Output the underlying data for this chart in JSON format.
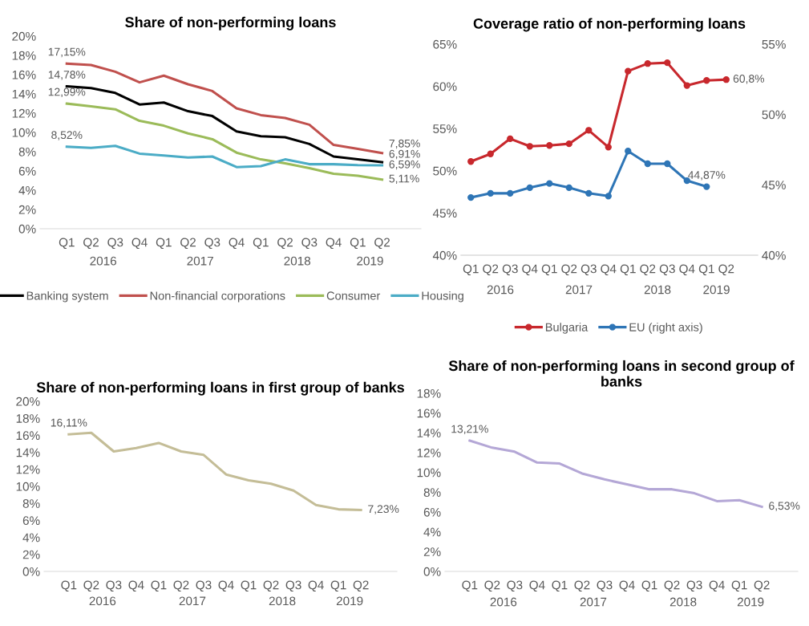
{
  "chart_data": [
    {
      "type": "line",
      "title": "Share of non-performing loans",
      "categories": [
        "Q1",
        "Q2",
        "Q3",
        "Q4",
        "Q1",
        "Q2",
        "Q3",
        "Q4",
        "Q1",
        "Q2",
        "Q3",
        "Q4",
        "Q1",
        "Q2"
      ],
      "annotations": [
        "2016",
        "2017",
        "2018",
        "2019"
      ],
      "ylim": [
        0,
        20
      ],
      "yticks": [
        {
          "value": 0,
          "label": "0%"
        },
        {
          "value": 2,
          "label": "2%"
        },
        {
          "value": 4,
          "label": "4%"
        },
        {
          "value": 6,
          "label": "6%"
        },
        {
          "value": 8,
          "label": "8%"
        },
        {
          "value": 10,
          "label": "10%"
        },
        {
          "value": 12,
          "label": "12%"
        },
        {
          "value": 14,
          "label": "14%"
        },
        {
          "value": 16,
          "label": "16%"
        },
        {
          "value": 18,
          "label": "18%"
        },
        {
          "value": 20,
          "label": "20%"
        }
      ],
      "legend": "bottom",
      "marker": "none",
      "series": [
        {
          "name": "Banking system",
          "color": "#000000",
          "values": [
            14.78,
            14.6,
            14.1,
            12.9,
            13.1,
            12.2,
            11.7,
            10.1,
            9.6,
            9.5,
            8.8,
            7.5,
            7.2,
            6.91
          ],
          "value_labels": [
            "14,78%",
            null,
            null,
            null,
            null,
            null,
            null,
            null,
            null,
            null,
            null,
            null,
            null,
            "6,91%"
          ]
        },
        {
          "name": "Non-financial corporations",
          "color": "#c0504d",
          "values": [
            17.15,
            17.0,
            16.3,
            15.2,
            15.9,
            15.0,
            14.3,
            12.5,
            11.8,
            11.5,
            10.8,
            8.7,
            8.3,
            7.85
          ],
          "value_labels": [
            "17,15%",
            null,
            null,
            null,
            null,
            null,
            null,
            null,
            null,
            null,
            null,
            null,
            null,
            "7,85%"
          ]
        },
        {
          "name": "Consumer",
          "color": "#9bbb59",
          "values": [
            12.99,
            12.7,
            12.4,
            11.2,
            10.7,
            9.9,
            9.3,
            7.9,
            7.2,
            6.8,
            6.3,
            5.7,
            5.5,
            5.11
          ],
          "value_labels": [
            "12,99%",
            null,
            null,
            null,
            null,
            null,
            null,
            null,
            null,
            null,
            null,
            null,
            null,
            "5,11%"
          ]
        },
        {
          "name": "Housing",
          "color": "#4bacc6",
          "values": [
            8.52,
            8.4,
            8.6,
            7.8,
            7.6,
            7.4,
            7.5,
            6.4,
            6.5,
            7.2,
            6.7,
            6.7,
            6.6,
            6.59
          ],
          "value_labels": [
            "8,52%",
            null,
            null,
            null,
            null,
            null,
            null,
            null,
            null,
            null,
            null,
            null,
            null,
            "6,59%"
          ]
        }
      ]
    },
    {
      "type": "line",
      "title": "Coverage ratio of non-performing loans",
      "categories": [
        "Q1",
        "Q2",
        "Q3",
        "Q4",
        "Q1",
        "Q2",
        "Q3",
        "Q4",
        "Q1",
        "Q2",
        "Q3",
        "Q4",
        "Q1",
        "Q2"
      ],
      "annotations": [
        "2016",
        "2017",
        "2018",
        "2019"
      ],
      "ylim": [
        40,
        65
      ],
      "yticks": [
        {
          "value": 40,
          "label": "40%"
        },
        {
          "value": 45,
          "label": "45%"
        },
        {
          "value": 50,
          "label": "50%"
        },
        {
          "value": 55,
          "label": "55%"
        },
        {
          "value": 60,
          "label": "60%"
        },
        {
          "value": 65,
          "label": "65%"
        }
      ],
      "y2lim": [
        40,
        55
      ],
      "y2ticks": [
        {
          "value": 40,
          "label": "40%"
        },
        {
          "value": 45,
          "label": "45%"
        },
        {
          "value": 50,
          "label": "50%"
        },
        {
          "value": 55,
          "label": "55%"
        }
      ],
      "legend": "bottom",
      "marker": "circle",
      "series": [
        {
          "name": "Bulgaria",
          "color": "#c8282d",
          "values": [
            51.1,
            52.0,
            53.8,
            52.9,
            53.0,
            53.2,
            54.8,
            52.8,
            61.8,
            62.7,
            62.8,
            60.1,
            60.7,
            60.8
          ],
          "value_labels": [
            null,
            null,
            null,
            null,
            null,
            null,
            null,
            null,
            null,
            null,
            null,
            null,
            null,
            "60,8%"
          ]
        },
        {
          "name": "EU (right axis)",
          "color": "#2e75b6",
          "axis": "y2",
          "values": [
            44.1,
            44.4,
            44.4,
            44.8,
            45.1,
            44.8,
            44.4,
            44.2,
            47.4,
            46.5,
            46.5,
            45.3,
            44.87,
            null
          ],
          "value_labels": [
            null,
            null,
            null,
            null,
            null,
            null,
            null,
            null,
            null,
            null,
            null,
            null,
            "44,87%",
            null
          ]
        }
      ]
    },
    {
      "type": "line",
      "title": "Share of non-performing loans in first group of banks",
      "categories": [
        "Q1",
        "Q2",
        "Q3",
        "Q4",
        "Q1",
        "Q2",
        "Q3",
        "Q4",
        "Q1",
        "Q2",
        "Q3",
        "Q4",
        "Q1",
        "Q2"
      ],
      "annotations": [
        "2016",
        "2017",
        "2018",
        "2019"
      ],
      "ylim": [
        0,
        20
      ],
      "yticks": [
        {
          "value": 0,
          "label": "0%"
        },
        {
          "value": 2,
          "label": "2%"
        },
        {
          "value": 4,
          "label": "4%"
        },
        {
          "value": 6,
          "label": "6%"
        },
        {
          "value": 8,
          "label": "8%"
        },
        {
          "value": 10,
          "label": "10%"
        },
        {
          "value": 12,
          "label": "12%"
        },
        {
          "value": 14,
          "label": "14%"
        },
        {
          "value": 16,
          "label": "16%"
        },
        {
          "value": 18,
          "label": "18%"
        },
        {
          "value": 20,
          "label": "20%"
        }
      ],
      "marker": "none",
      "series": [
        {
          "color": "#c4bd97",
          "values": [
            16.11,
            16.3,
            14.1,
            14.5,
            15.1,
            14.1,
            13.7,
            11.4,
            10.7,
            10.3,
            9.5,
            7.8,
            7.3,
            7.23
          ],
          "value_labels": [
            "16,11%",
            null,
            null,
            null,
            null,
            null,
            null,
            null,
            null,
            null,
            null,
            null,
            null,
            "7,23%"
          ]
        }
      ]
    },
    {
      "type": "line",
      "title": "Share of non-performing loans in second group of banks",
      "categories": [
        "Q1",
        "Q2",
        "Q3",
        "Q4",
        "Q1",
        "Q2",
        "Q3",
        "Q4",
        "Q1",
        "Q2",
        "Q3",
        "Q4",
        "Q1",
        "Q2"
      ],
      "annotations": [
        "2016",
        "2017",
        "2018",
        "2019"
      ],
      "ylim": [
        0,
        18
      ],
      "yticks": [
        {
          "value": 0,
          "label": "0%"
        },
        {
          "value": 2,
          "label": "2%"
        },
        {
          "value": 4,
          "label": "4%"
        },
        {
          "value": 6,
          "label": "6%"
        },
        {
          "value": 8,
          "label": "8%"
        },
        {
          "value": 10,
          "label": "10%"
        },
        {
          "value": 12,
          "label": "12%"
        },
        {
          "value": 14,
          "label": "14%"
        },
        {
          "value": 16,
          "label": "16%"
        },
        {
          "value": 18,
          "label": "18%"
        }
      ],
      "marker": "none",
      "series": [
        {
          "color": "#b4a7d6",
          "values": [
            13.21,
            12.5,
            12.1,
            11.0,
            10.9,
            9.9,
            9.3,
            8.8,
            8.3,
            8.3,
            7.9,
            7.1,
            7.2,
            6.53
          ],
          "value_labels": [
            "13,21%",
            null,
            null,
            null,
            null,
            null,
            null,
            null,
            null,
            null,
            null,
            null,
            null,
            "6,53%"
          ]
        }
      ]
    }
  ]
}
